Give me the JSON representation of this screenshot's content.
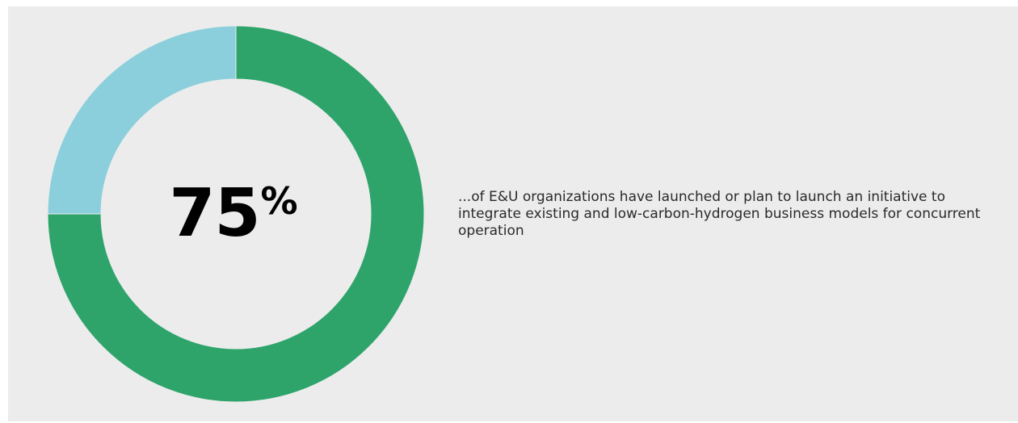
{
  "colors": {
    "background": "#ececec",
    "primary_segment": "#2ea46b",
    "secondary_segment": "#8ccfdc",
    "text": "#000000"
  },
  "chart_data": {
    "type": "pie",
    "variant": "donut",
    "slices": [
      {
        "value": 75,
        "color": "#2ea46b"
      },
      {
        "value": 25,
        "color": "#8ccfdc"
      }
    ],
    "center_value": "75",
    "center_unit": "%",
    "caption": "...of E&U organizations have launched or plan to launch an initiative to integrate existing and low-carbon-hydrogen business models for concurrent operation"
  }
}
